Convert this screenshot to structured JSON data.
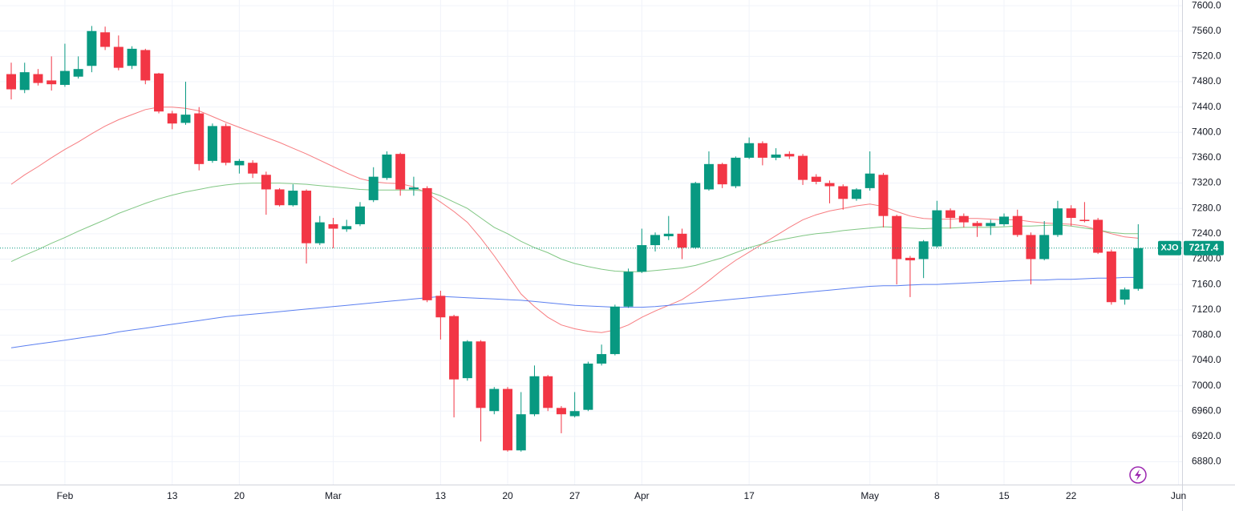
{
  "chart_data": {
    "type": "candlestick",
    "symbol": "XJO",
    "last_price": 7217.4,
    "up_color": "#089981",
    "down_color": "#f23645",
    "grid": true,
    "ylim": [
      6844,
      7609
    ],
    "yticks": [
      {
        "value": 6880,
        "label": "6880.0"
      },
      {
        "value": 6920,
        "label": "6920.0"
      },
      {
        "value": 6960,
        "label": "6960.0"
      },
      {
        "value": 7000,
        "label": "7000.0"
      },
      {
        "value": 7040,
        "label": "7040.0"
      },
      {
        "value": 7080,
        "label": "7080.0"
      },
      {
        "value": 7120,
        "label": "7120.0"
      },
      {
        "value": 7160,
        "label": "7160.0"
      },
      {
        "value": 7200,
        "label": "7200.0"
      },
      {
        "value": 7240,
        "label": "7240.0"
      },
      {
        "value": 7280,
        "label": "7280.0"
      },
      {
        "value": 7320,
        "label": "7320.0"
      },
      {
        "value": 7360,
        "label": "7360.0"
      },
      {
        "value": 7400,
        "label": "7400.0"
      },
      {
        "value": 7440,
        "label": "7440.0"
      },
      {
        "value": 7480,
        "label": "7480.0"
      },
      {
        "value": 7520,
        "label": "7520.0"
      },
      {
        "value": 7560,
        "label": "7560.0"
      },
      {
        "value": 7600,
        "label": "7600.0"
      }
    ],
    "categories": [
      null,
      null,
      null,
      null,
      "Feb",
      null,
      null,
      null,
      null,
      null,
      null,
      null,
      "13",
      null,
      null,
      null,
      null,
      "20",
      null,
      null,
      null,
      null,
      null,
      null,
      "Mar",
      null,
      null,
      null,
      null,
      null,
      null,
      null,
      "13",
      null,
      null,
      null,
      null,
      "20",
      null,
      null,
      null,
      null,
      "27",
      null,
      null,
      null,
      null,
      "Apr",
      null,
      null,
      null,
      null,
      null,
      null,
      null,
      "17",
      null,
      null,
      null,
      null,
      null,
      null,
      null,
      null,
      "May",
      null,
      null,
      null,
      null,
      "8",
      null,
      null,
      null,
      null,
      "15",
      null,
      null,
      null,
      null,
      "22",
      null,
      null,
      null,
      null,
      null,
      null,
      null,
      "Jun"
    ],
    "open": [
      7492,
      7467,
      7492,
      7482,
      7475,
      7488,
      7505,
      7558,
      7535,
      7505,
      7530,
      7493,
      7430,
      7415,
      7430,
      7355,
      7410,
      7348,
      7352,
      7333,
      7310,
      7285,
      7308,
      7225,
      7255,
      7247,
      7255,
      7293,
      7328,
      7366,
      7310,
      7312,
      7142,
      7110,
      7012,
      7070,
      6960,
      6995,
      6898,
      6955,
      7015,
      6965,
      6952,
      6962,
      7035,
      7050,
      7125,
      7180,
      7222,
      7236,
      7240,
      7218,
      7310,
      7350,
      7315,
      7360,
      7383,
      7360,
      7366,
      7363,
      7330,
      7320,
      7315,
      7295,
      7312,
      7333,
      7268,
      7202,
      7200,
      7220,
      7277,
      7268,
      7257,
      7252,
      7255,
      7268,
      7238,
      7200,
      7238,
      7280,
      7262,
      7262,
      7212,
      7136,
      7153,
      null,
      null,
      null
    ],
    "high": [
      7510,
      7510,
      7500,
      7520,
      7540,
      7520,
      7568,
      7567,
      7553,
      7536,
      7532,
      7494,
      7434,
      7480,
      7440,
      7414,
      7414,
      7358,
      7356,
      7338,
      7312,
      7318,
      7310,
      7268,
      7265,
      7262,
      7290,
      7345,
      7370,
      7368,
      7330,
      7315,
      7150,
      7112,
      7072,
      7072,
      6998,
      6998,
      6990,
      7032,
      7017,
      6968,
      6990,
      7038,
      7065,
      7128,
      7185,
      7248,
      7242,
      7268,
      7248,
      7322,
      7370,
      7352,
      7362,
      7392,
      7386,
      7375,
      7370,
      7366,
      7334,
      7324,
      7318,
      7312,
      7370,
      7336,
      7270,
      7205,
      7230,
      7292,
      7280,
      7272,
      7260,
      7262,
      7272,
      7278,
      7242,
      7260,
      7292,
      7285,
      7290,
      7265,
      7215,
      7155,
      7255,
      null,
      null,
      null
    ],
    "low": [
      7452,
      7462,
      7474,
      7466,
      7472,
      7485,
      7495,
      7530,
      7498,
      7500,
      7476,
      7430,
      7405,
      7412,
      7340,
      7352,
      7348,
      7335,
      7328,
      7270,
      7283,
      7283,
      7193,
      7222,
      7217,
      7243,
      7252,
      7290,
      7325,
      7300,
      7300,
      7132,
      7073,
      6950,
      7008,
      6912,
      6955,
      6896,
      6896,
      6952,
      6960,
      6925,
      6950,
      6960,
      7032,
      7048,
      7123,
      7178,
      7212,
      7230,
      7200,
      7216,
      7308,
      7312,
      7312,
      7358,
      7348,
      7356,
      7358,
      7317,
      7318,
      7288,
      7278,
      7292,
      7308,
      7250,
      7160,
      7140,
      7170,
      7218,
      7248,
      7250,
      7235,
      7238,
      7252,
      7235,
      7160,
      7198,
      7235,
      7252,
      7258,
      7208,
      7128,
      7128,
      7150,
      null,
      null,
      null
    ],
    "close": [
      7468,
      7495,
      7478,
      7476,
      7497,
      7500,
      7560,
      7535,
      7502,
      7532,
      7482,
      7433,
      7414,
      7428,
      7350,
      7410,
      7352,
      7355,
      7335,
      7310,
      7285,
      7308,
      7225,
      7258,
      7248,
      7252,
      7283,
      7330,
      7365,
      7310,
      7313,
      7135,
      7108,
      7010,
      7070,
      6965,
      6995,
      6898,
      6955,
      7015,
      6965,
      6955,
      6960,
      7035,
      7050,
      7125,
      7180,
      7222,
      7238,
      7240,
      7218,
      7320,
      7350,
      7318,
      7360,
      7383,
      7360,
      7365,
      7362,
      7325,
      7322,
      7315,
      7295,
      7310,
      7335,
      7268,
      7200,
      7198,
      7228,
      7277,
      7265,
      7258,
      7252,
      7257,
      7267,
      7238,
      7200,
      7238,
      7280,
      7265,
      7260,
      7210,
      7132,
      7152,
      7217.4,
      null,
      null,
      null
    ],
    "lines": [
      {
        "color": "#f77c80",
        "values": [
          7318,
          7333,
          7346,
          7360,
          7373,
          7385,
          7398,
          7410,
          7420,
          7428,
          7436,
          7440,
          7440,
          7438,
          7434,
          7425,
          7416,
          7408,
          7400,
          7392,
          7384,
          7375,
          7366,
          7356,
          7346,
          7336,
          7327,
          7322,
          7320,
          7319,
          7314,
          7304,
          7290,
          7275,
          7258,
          7233,
          7205,
          7175,
          7145,
          7125,
          7108,
          7096,
          7090,
          7086,
          7084,
          7088,
          7096,
          7108,
          7118,
          7127,
          7136,
          7150,
          7166,
          7183,
          7198,
          7211,
          7224,
          7237,
          7250,
          7262,
          7270,
          7276,
          7280,
          7284,
          7287,
          7283,
          7275,
          7268,
          7264,
          7263,
          7263,
          7264,
          7264,
          7263,
          7262,
          7262,
          7259,
          7257,
          7256,
          7255,
          7252,
          7246,
          7240,
          7235,
          7233,
          null,
          null,
          null
        ]
      },
      {
        "color": "#81c784",
        "values": [
          7196,
          7206,
          7215,
          7225,
          7234,
          7244,
          7253,
          7262,
          7272,
          7280,
          7288,
          7295,
          7301,
          7306,
          7310,
          7314,
          7317,
          7319,
          7320,
          7320,
          7320,
          7319,
          7318,
          7316,
          7314,
          7312,
          7310,
          7309,
          7309,
          7309,
          7309,
          7307,
          7300,
          7290,
          7280,
          7265,
          7250,
          7240,
          7228,
          7218,
          7210,
          7200,
          7193,
          7188,
          7184,
          7181,
          7180,
          7180,
          7182,
          7184,
          7186,
          7190,
          7196,
          7202,
          7210,
          7218,
          7224,
          7229,
          7233,
          7237,
          7240,
          7242,
          7245,
          7247,
          7249,
          7251,
          7250,
          7249,
          7248,
          7249,
          7249,
          7250,
          7250,
          7250,
          7251,
          7252,
          7252,
          7253,
          7254,
          7252,
          7249,
          7246,
          7242,
          7240,
          7240,
          null,
          null,
          null
        ]
      },
      {
        "color": "#5b7ff0",
        "values": [
          7060,
          7063,
          7066,
          7069,
          7072,
          7075,
          7078,
          7081,
          7085,
          7088,
          7091,
          7094,
          7097,
          7100,
          7103,
          7106,
          7109,
          7111,
          7113,
          7115,
          7117,
          7119,
          7121,
          7123,
          7125,
          7127,
          7129,
          7131,
          7133,
          7135,
          7137,
          7139,
          7141,
          7140,
          7139,
          7138,
          7137,
          7136,
          7135,
          7133,
          7131,
          7129,
          7127,
          7126,
          7125,
          7124,
          7124,
          7124,
          7125,
          7127,
          7129,
          7131,
          7133,
          7135,
          7137,
          7139,
          7141,
          7143,
          7145,
          7147,
          7149,
          7151,
          7153,
          7155,
          7157,
          7158,
          7158,
          7159,
          7160,
          7160,
          7161,
          7162,
          7163,
          7164,
          7165,
          7166,
          7167,
          7167,
          7168,
          7168,
          7169,
          7170,
          7170,
          7171,
          7171,
          null,
          null,
          null
        ]
      }
    ]
  }
}
